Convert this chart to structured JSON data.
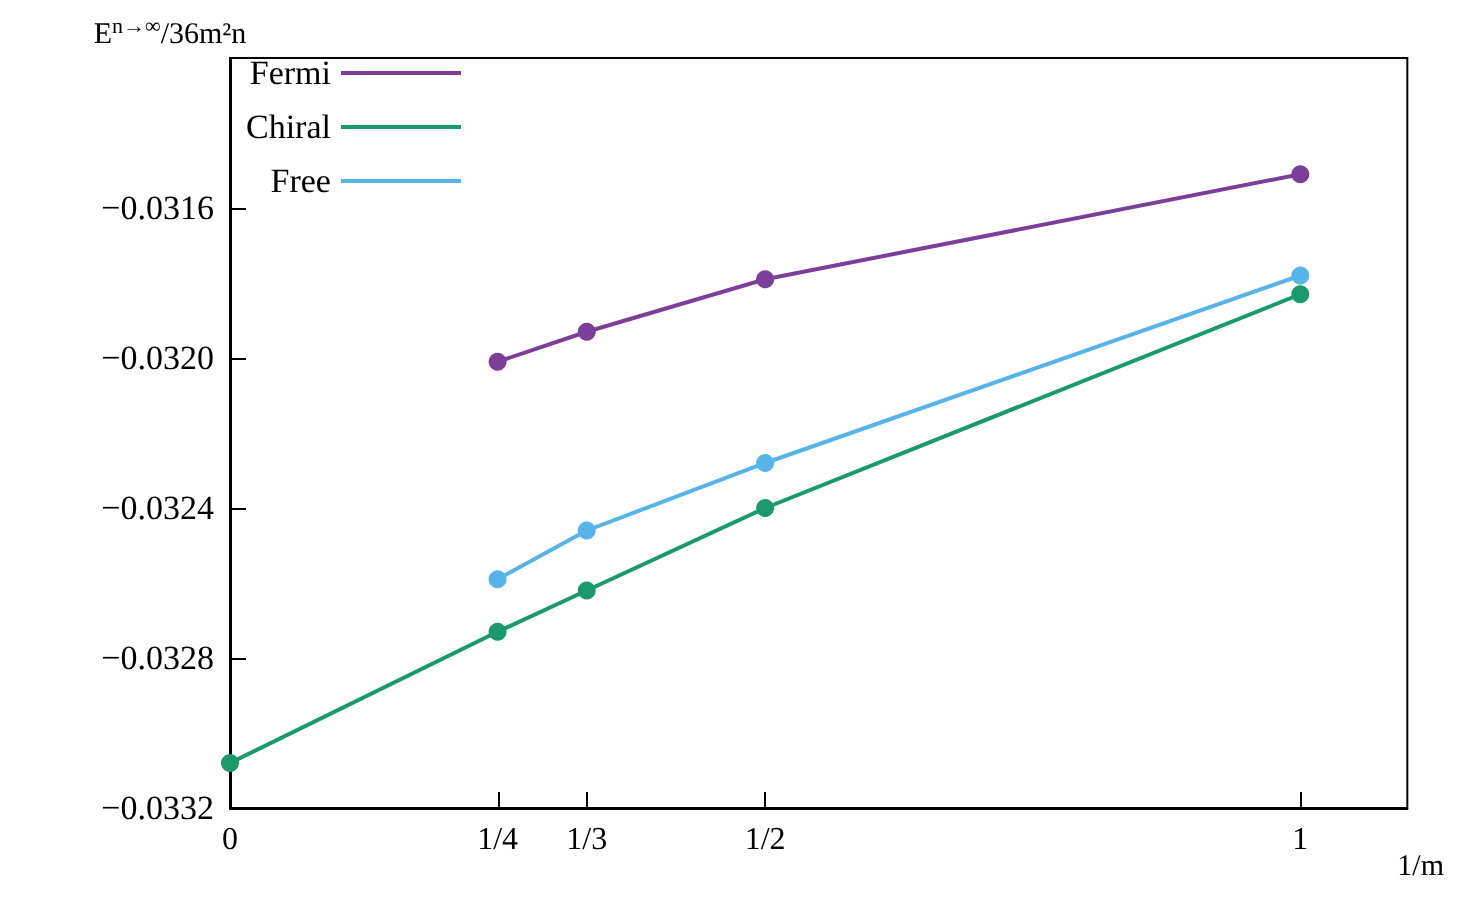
{
  "chart_data": {
    "type": "line",
    "xlabel": "1/m",
    "ylabel": "E$^{n→∞}$/36m²n",
    "xlim": [
      0,
      1.1
    ],
    "xticks": [
      0,
      {
        "value": 0.25,
        "label": "1/4"
      },
      {
        "value": 0.3333,
        "label": "1/3"
      },
      {
        "value": 0.5,
        "label": "1/2"
      },
      1
    ],
    "ylim": [
      -0.0332,
      -0.0312
    ],
    "yticks": [
      {
        "value": -0.0332,
        "label": "−0.0332"
      },
      {
        "value": -0.0328,
        "label": "−0.0328"
      },
      {
        "value": -0.0324,
        "label": "−0.0324"
      },
      {
        "value": -0.032,
        "label": "−0.0320"
      },
      {
        "value": -0.0316,
        "label": "−0.0316"
      }
    ],
    "series": [
      {
        "name": "Fermi",
        "color": "#7b3f9a",
        "x": [
          0.25,
          0.3333,
          0.5,
          1
        ],
        "values": [
          -0.03201,
          -0.03193,
          -0.03179,
          -0.03151
        ]
      },
      {
        "name": "Chiral",
        "color": "#1a9a6c",
        "x": [
          0,
          0.25,
          0.3333,
          0.5,
          1
        ],
        "values": [
          -0.03308,
          -0.03273,
          -0.03262,
          -0.0324,
          -0.03183
        ]
      },
      {
        "name": "Free",
        "color": "#56b4e9",
        "x": [
          0.25,
          0.3333,
          0.5,
          1
        ],
        "values": [
          -0.03259,
          -0.03246,
          -0.03228,
          -0.03178
        ]
      }
    ],
    "legend": "top left",
    "marker": "circle",
    "grid": false
  }
}
